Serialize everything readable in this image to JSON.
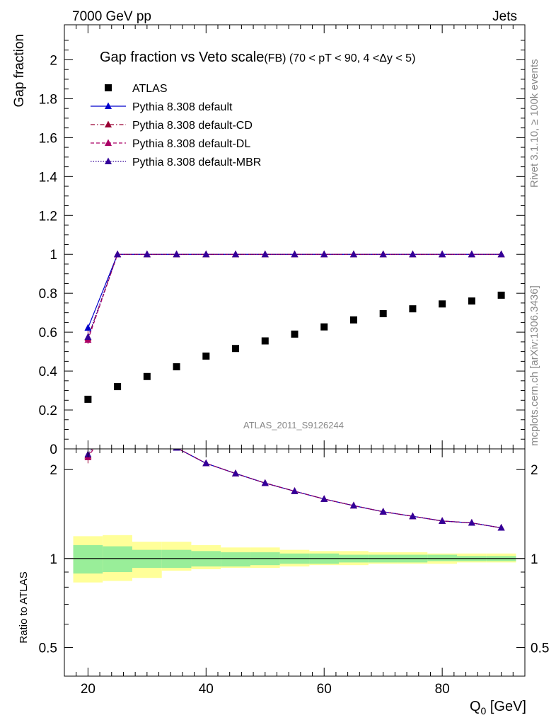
{
  "header": {
    "left": "7000 GeV pp",
    "right": "Jets"
  },
  "side_labels": {
    "rivet": "Rivet 3.1.10, ≥ 100k events",
    "mcplots": "mcplots.cern.ch [arXiv:1306.3436]"
  },
  "watermark": "ATLAS_2011_S9126244",
  "colors": {
    "atlas": "#000000",
    "default": "#0000cc",
    "cd": "#990033",
    "dl": "#aa0066",
    "mbr": "#330099",
    "band_inner": "#99ee99",
    "band_outer": "#ffff99"
  },
  "chart_data": [
    {
      "type": "scatter",
      "title": "Gap fraction vs Veto scale",
      "subtitle": "(FB) (70 < pT <  90, 4 <Δy < 5)",
      "ylabel": "Gap fraction",
      "xlabel": "",
      "xlim": [
        16,
        94
      ],
      "ylim": [
        0,
        2.18
      ],
      "yticks": [
        "0",
        "0.2",
        "0.4",
        "0.6",
        "0.8",
        "1",
        "1.2",
        "1.4",
        "1.6",
        "1.8",
        "2"
      ],
      "legend_position": "top-left",
      "x": [
        20,
        25,
        30,
        35,
        40,
        45,
        50,
        55,
        60,
        65,
        70,
        75,
        80,
        85,
        90
      ],
      "series": [
        {
          "name": "ATLAS",
          "style": "marker",
          "values": [
            0.255,
            0.32,
            0.372,
            0.422,
            0.477,
            0.516,
            0.555,
            0.59,
            0.627,
            0.663,
            0.695,
            0.72,
            0.745,
            0.76,
            0.79
          ]
        },
        {
          "name": "Pythia 8.308 default",
          "style": "solid",
          "values": [
            0.622,
            1.0,
            1.0,
            1.0,
            1.0,
            1.0,
            1.0,
            1.0,
            1.0,
            1.0,
            1.0,
            1.0,
            1.0,
            1.0,
            1.0
          ]
        },
        {
          "name": "Pythia 8.308 default-CD",
          "style": "dashdot",
          "values": [
            0.57,
            1.0,
            1.0,
            1.0,
            1.0,
            1.0,
            1.0,
            1.0,
            1.0,
            1.0,
            1.0,
            1.0,
            1.0,
            1.0,
            1.0
          ]
        },
        {
          "name": "Pythia 8.308 default-DL",
          "style": "dashed",
          "values": [
            0.56,
            1.0,
            1.0,
            1.0,
            1.0,
            1.0,
            1.0,
            1.0,
            1.0,
            1.0,
            1.0,
            1.0,
            1.0,
            1.0,
            1.0
          ]
        },
        {
          "name": "Pythia 8.308 default-MBR",
          "style": "dotted",
          "values": [
            0.575,
            1.0,
            1.0,
            1.0,
            1.0,
            1.0,
            1.0,
            1.0,
            1.0,
            1.0,
            1.0,
            1.0,
            1.0,
            1.0,
            1.0
          ]
        }
      ]
    },
    {
      "type": "line",
      "title": "",
      "ylabel": "Ratio to ATLAS",
      "xlabel": "Q0 [GeV]",
      "xlabel_main": "Q",
      "xlabel_sub": "0",
      "xlabel_unit": " [GeV]",
      "xlim": [
        16,
        94
      ],
      "ylim": [
        0.4,
        2.35
      ],
      "scale": "log",
      "yticks": [
        "0.5",
        "1",
        "2"
      ],
      "xticks": [
        "20",
        "40",
        "60",
        "80"
      ],
      "x": [
        20,
        25,
        30,
        35,
        40,
        45,
        50,
        55,
        60,
        65,
        70,
        75,
        80,
        85,
        90
      ],
      "series": [
        {
          "name": "Pythia 8.308 default",
          "values": [
            2.43,
            3.12,
            2.69,
            2.37,
            2.1,
            1.94,
            1.8,
            1.69,
            1.59,
            1.51,
            1.44,
            1.39,
            1.34,
            1.32,
            1.27
          ]
        },
        {
          "name": "Pythia 8.308 default-CD",
          "values": [
            2.23,
            3.12,
            2.69,
            2.37,
            2.1,
            1.94,
            1.8,
            1.69,
            1.59,
            1.51,
            1.44,
            1.39,
            1.34,
            1.32,
            1.27
          ]
        },
        {
          "name": "Pythia 8.308 default-DL",
          "values": [
            2.2,
            3.12,
            2.69,
            2.37,
            2.1,
            1.94,
            1.8,
            1.69,
            1.59,
            1.51,
            1.44,
            1.39,
            1.34,
            1.32,
            1.27
          ]
        },
        {
          "name": "Pythia 8.308 default-MBR",
          "values": [
            2.25,
            3.12,
            2.69,
            2.37,
            2.1,
            1.94,
            1.8,
            1.69,
            1.59,
            1.51,
            1.44,
            1.39,
            1.34,
            1.32,
            1.27
          ]
        }
      ],
      "band_x_edges": [
        17.5,
        22.5,
        27.5,
        32.5,
        37.5,
        42.5,
        47.5,
        52.5,
        57.5,
        62.5,
        67.5,
        72.5,
        77.5,
        82.5,
        87.5,
        92.5
      ],
      "band_inner": [
        [
          0.89,
          1.11
        ],
        [
          0.9,
          1.1
        ],
        [
          0.93,
          1.07
        ],
        [
          0.93,
          1.07
        ],
        [
          0.94,
          1.06
        ],
        [
          0.94,
          1.05
        ],
        [
          0.95,
          1.05
        ],
        [
          0.96,
          1.04
        ],
        [
          0.96,
          1.04
        ],
        [
          0.97,
          1.03
        ],
        [
          0.97,
          1.03
        ],
        [
          0.97,
          1.03
        ],
        [
          0.98,
          1.03
        ],
        [
          0.98,
          1.02
        ],
        [
          0.98,
          1.02
        ]
      ],
      "band_outer": [
        [
          0.83,
          1.19
        ],
        [
          0.84,
          1.2
        ],
        [
          0.86,
          1.14
        ],
        [
          0.91,
          1.14
        ],
        [
          0.92,
          1.11
        ],
        [
          0.93,
          1.09
        ],
        [
          0.93,
          1.09
        ],
        [
          0.94,
          1.07
        ],
        [
          0.95,
          1.06
        ],
        [
          0.95,
          1.06
        ],
        [
          0.96,
          1.05
        ],
        [
          0.96,
          1.05
        ],
        [
          0.96,
          1.04
        ],
        [
          0.97,
          1.04
        ],
        [
          0.97,
          1.04
        ]
      ]
    }
  ]
}
